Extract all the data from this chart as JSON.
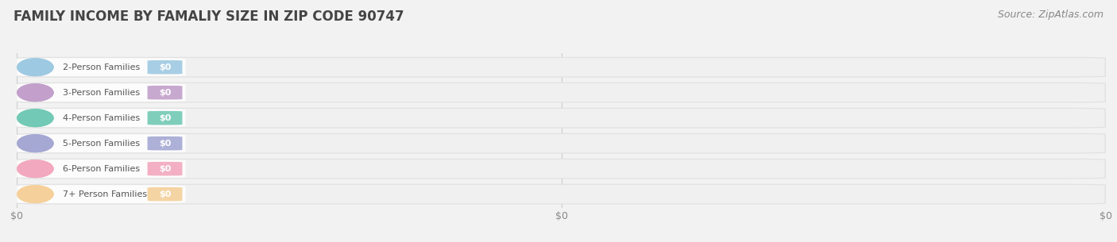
{
  "title": "FAMILY INCOME BY FAMALIY SIZE IN ZIP CODE 90747",
  "source": "Source: ZipAtlas.com",
  "categories": [
    "2-Person Families",
    "3-Person Families",
    "4-Person Families",
    "5-Person Families",
    "6-Person Families",
    "7+ Person Families"
  ],
  "values": [
    0,
    0,
    0,
    0,
    0,
    0
  ],
  "bar_colors": [
    "#9ec9e2",
    "#c2a0cb",
    "#72c9b5",
    "#a5a8d3",
    "#f2a8be",
    "#f5d09a"
  ],
  "background_color": "#f2f2f2",
  "bar_bg_outer": "#e2e2e2",
  "bar_bg_inner": "#f0f0f0",
  "xlim_max": 1.0,
  "xtick_positions": [
    0.0,
    0.5,
    1.0
  ],
  "xtick_labels": [
    "$0",
    "$0",
    "$0"
  ],
  "title_fontsize": 12,
  "source_fontsize": 9,
  "label_fontsize": 8,
  "value_fontsize": 8
}
